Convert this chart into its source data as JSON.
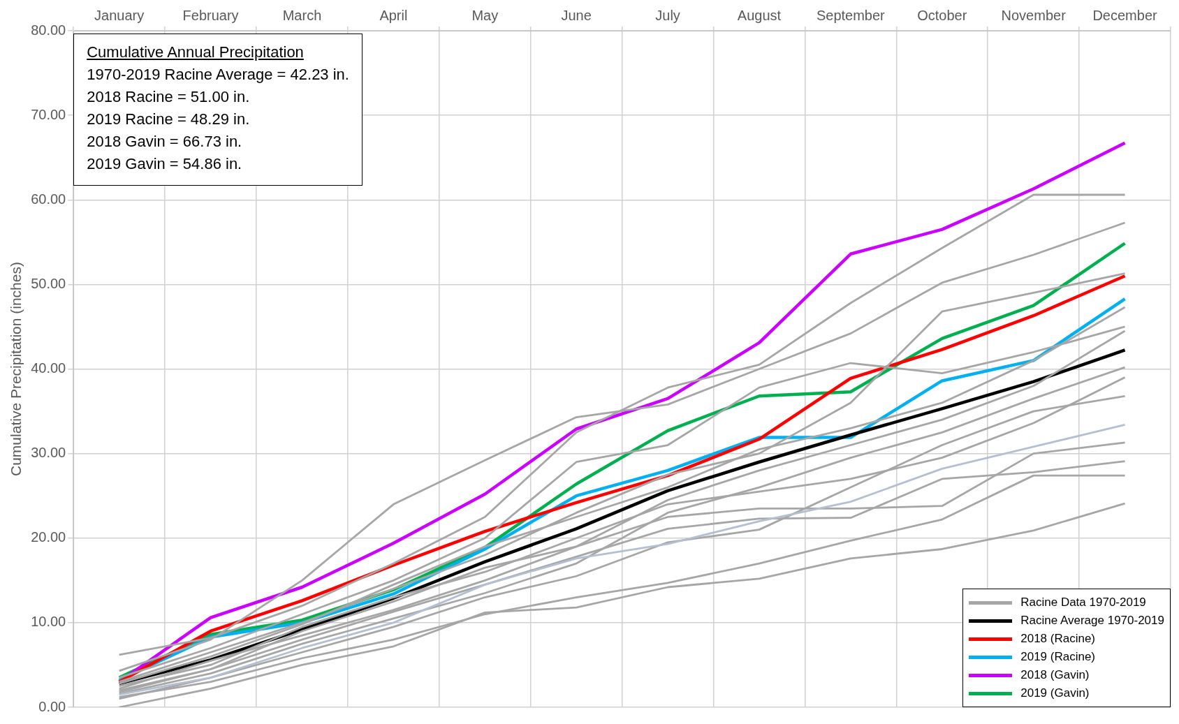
{
  "chart_data": {
    "type": "line",
    "title": "Cumulative Annual Precipitation",
    "ylabel": "Cumulative Precipitation (inches)",
    "categories": [
      "January",
      "February",
      "March",
      "April",
      "May",
      "June",
      "July",
      "August",
      "September",
      "October",
      "November",
      "December"
    ],
    "ylim": [
      0,
      80
    ],
    "yticks": [
      {
        "value": 0,
        "label": "0.00"
      },
      {
        "value": 10,
        "label": "10.00"
      },
      {
        "value": 20,
        "label": "20.00"
      },
      {
        "value": 30,
        "label": "30.00"
      },
      {
        "value": 40,
        "label": "40.00"
      },
      {
        "value": 50,
        "label": "50.00"
      },
      {
        "value": 60,
        "label": "60.00"
      },
      {
        "value": 70,
        "label": "70.00"
      },
      {
        "value": 80,
        "label": "80.00"
      }
    ],
    "grid": true,
    "legend": "bottom right",
    "marker": "none",
    "line_style": "solid",
    "annotations": [
      "1970-2019 Racine Average = 42.23 in.",
      "2018 Racine = 51.00 in.",
      "2019 Racine = 48.29 in.",
      "2018 Gavin = 66.73 in.",
      "2019 Gavin = 54.86 in."
    ],
    "series": [
      {
        "name": "Racine Data 1970-2019",
        "color": "#a6a6a6",
        "values": [
          6.2,
          8.2,
          12.0,
          17.0,
          22.5,
          32.5,
          37.8,
          40.5,
          47.8,
          54.3,
          60.6,
          60.6
        ]
      },
      {
        "color": "#a6a6a6",
        "values": [
          4.3,
          8.0,
          15.0,
          24.0,
          29.2,
          34.3,
          35.8,
          40.0,
          44.2,
          50.2,
          53.5,
          57.3
        ]
      },
      {
        "color": "#a6a6a6",
        "values": [
          0.0,
          2.2,
          5.0,
          7.2,
          11.2,
          11.8,
          14.2,
          15.2,
          17.6,
          18.7,
          20.9,
          24.1
        ]
      },
      {
        "color": "#a6a6a6",
        "values": [
          1.2,
          3.0,
          5.8,
          8.0,
          11.0,
          13.0,
          14.7,
          17.0,
          19.7,
          22.2,
          27.4,
          27.4
        ]
      },
      {
        "color": "#b4bfd1",
        "values": [
          1.5,
          3.5,
          7.0,
          10.0,
          14.5,
          17.6,
          19.3,
          22.0,
          24.3,
          28.2,
          30.8,
          33.4
        ]
      },
      {
        "color": "#a6a6a6",
        "values": [
          1.8,
          4.5,
          8.0,
          11.3,
          14.5,
          17.8,
          21.1,
          22.3,
          22.4,
          27.0,
          27.8,
          29.1
        ]
      },
      {
        "color": "#a6a6a6",
        "values": [
          2.5,
          5.0,
          9.5,
          13.0,
          16.0,
          20.0,
          24.0,
          25.5,
          27.0,
          29.5,
          33.6,
          39.0
        ]
      },
      {
        "color": "#a6a6a6",
        "values": [
          3.0,
          6.5,
          10.0,
          14.0,
          18.0,
          23.0,
          27.5,
          30.0,
          36.0,
          46.8,
          49.0,
          51.3
        ]
      },
      {
        "color": "#a6a6a6",
        "values": [
          2.0,
          4.5,
          9.0,
          12.5,
          16.5,
          19.0,
          22.5,
          23.5,
          23.5,
          23.8,
          30.0,
          31.3
        ]
      },
      {
        "color": "#a6a6a6",
        "values": [
          3.5,
          7.0,
          11.0,
          15.0,
          20.0,
          29.0,
          31.0,
          37.8,
          40.7,
          39.5,
          42.0,
          45.0
        ]
      },
      {
        "color": "#a6a6a6",
        "values": [
          2.2,
          5.5,
          8.5,
          11.5,
          15.0,
          19.0,
          24.5,
          28.0,
          31.0,
          34.0,
          38.0,
          44.5
        ]
      },
      {
        "color": "#a6a6a6",
        "values": [
          1.0,
          3.5,
          6.5,
          9.5,
          13.0,
          15.5,
          19.5,
          21.0,
          26.0,
          31.0,
          35.0,
          36.8
        ]
      },
      {
        "color": "#a6a6a6",
        "values": [
          2.8,
          6.0,
          9.8,
          14.5,
          19.0,
          22.5,
          26.0,
          30.5,
          33.0,
          36.0,
          41.0,
          47.3
        ]
      },
      {
        "color": "#a6a6a6",
        "values": [
          1.6,
          4.0,
          7.5,
          10.5,
          13.5,
          17.0,
          23.0,
          26.0,
          29.5,
          32.5,
          36.5,
          40.2
        ]
      },
      {
        "name": "Racine Average 1970-2019",
        "color": "#000000",
        "values": [
          2.8,
          5.6,
          9.2,
          12.9,
          17.2,
          21.1,
          25.6,
          29.0,
          32.2,
          35.3,
          38.5,
          42.23
        ]
      },
      {
        "name": "2018 (Racine)",
        "color": "#ff0000",
        "values": [
          3.0,
          9.0,
          12.6,
          16.8,
          20.8,
          24.2,
          27.4,
          31.7,
          38.9,
          42.3,
          46.3,
          51.0
        ]
      },
      {
        "name": "2019 (Racine)",
        "color": "#00b0f0",
        "values": [
          3.2,
          8.3,
          10.0,
          13.4,
          18.7,
          25.0,
          28.0,
          31.9,
          31.9,
          38.6,
          41.0,
          48.29
        ]
      },
      {
        "name": "2018 (Gavin)",
        "color": "#cc00ff",
        "values": [
          3.0,
          10.6,
          14.2,
          19.4,
          25.2,
          32.9,
          36.5,
          43.1,
          53.6,
          56.5,
          61.3,
          66.73
        ]
      },
      {
        "name": "2019 (Gavin)",
        "color": "#00b050",
        "values": [
          3.5,
          8.6,
          10.3,
          13.9,
          18.9,
          26.4,
          32.7,
          36.8,
          37.3,
          43.6,
          47.5,
          54.86
        ]
      }
    ]
  }
}
